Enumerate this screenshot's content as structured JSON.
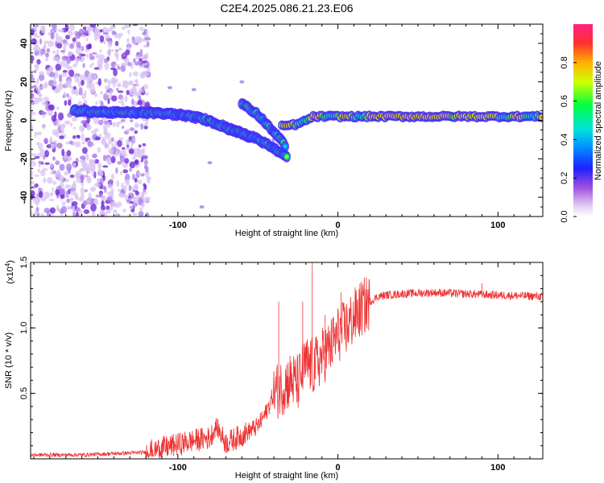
{
  "chart_data": [
    {
      "type": "heatmap",
      "title": "C2E4.2025.086.21.23.E06",
      "xlabel": "Height of straight line (km)",
      "ylabel": "Frequency (Hz)",
      "xlim": [
        -192,
        128
      ],
      "ylim": [
        -50,
        50
      ],
      "x_ticks": [
        -100,
        0,
        100
      ],
      "y_ticks": [
        -40,
        -20,
        0,
        20,
        40
      ],
      "colorbar": {
        "label": "Normalized spectral amplitude",
        "range": [
          0,
          1
        ],
        "ticks": [
          0.0,
          0.2,
          0.4,
          0.6,
          0.8
        ]
      },
      "ridges": [
        {
          "name": "main",
          "points": [
            [
              -165,
              5
            ],
            [
              -140,
              4
            ],
            [
              -120,
              4
            ],
            [
              -100,
              3
            ],
            [
              -85,
              1
            ],
            [
              -75,
              -2
            ],
            [
              -65,
              -5
            ],
            [
              -55,
              -9
            ]
          ]
        },
        {
          "name": "upper-branch",
          "points": [
            [
              -60,
              9
            ],
            [
              -50,
              3
            ],
            [
              -40,
              -6
            ],
            [
              -33,
              -13
            ]
          ]
        },
        {
          "name": "lower-branch",
          "points": [
            [
              -70,
              -4
            ],
            [
              -55,
              -8
            ],
            [
              -45,
              -12
            ],
            [
              -32,
              -19
            ]
          ]
        },
        {
          "name": "flat",
          "points": [
            [
              -35,
              -3
            ],
            [
              -25,
              -2
            ],
            [
              -15,
              2
            ],
            [
              0,
              2
            ],
            [
              40,
              2
            ],
            [
              80,
              2
            ],
            [
              128,
              2
            ]
          ]
        }
      ]
    },
    {
      "type": "line",
      "xlabel": "Height of straight line (km)",
      "ylabel": "SNR (10 * v/v)",
      "multiplier_label": "(x10",
      "multiplier_exp": "4",
      "multiplier_close": ")",
      "xlim": [
        -192,
        128
      ],
      "ylim": [
        0,
        1.5
      ],
      "x_ticks": [
        -100,
        0,
        100
      ],
      "y_ticks": [
        0.5,
        1.0,
        1.5
      ],
      "y_tick_labels": [
        "0.5",
        "1.0",
        "1.5"
      ],
      "color": "#ee3333",
      "series": [
        {
          "name": "SNR",
          "x": [
            -192,
            -160,
            -140,
            -120,
            -110,
            -100,
            -90,
            -80,
            -76,
            -70,
            -60,
            -50,
            -45,
            -40,
            -35,
            -30,
            -25,
            -20,
            -15,
            -10,
            -5,
            0,
            5,
            10,
            15,
            20,
            25,
            30,
            40,
            60,
            80,
            100,
            128
          ],
          "y": [
            0.03,
            0.03,
            0.04,
            0.05,
            0.08,
            0.11,
            0.14,
            0.16,
            0.25,
            0.12,
            0.18,
            0.25,
            0.35,
            0.5,
            0.55,
            0.6,
            0.58,
            0.72,
            0.7,
            0.78,
            0.85,
            0.95,
            1.0,
            1.08,
            1.15,
            1.2,
            1.24,
            1.25,
            1.26,
            1.27,
            1.26,
            1.25,
            1.24
          ]
        }
      ],
      "spikes": [
        [
          -37,
          1.2
        ],
        [
          -22,
          1.2
        ],
        [
          -16,
          1.55
        ],
        [
          -8,
          1.1
        ],
        [
          2,
          1.27
        ],
        [
          90,
          1.34
        ]
      ]
    }
  ]
}
